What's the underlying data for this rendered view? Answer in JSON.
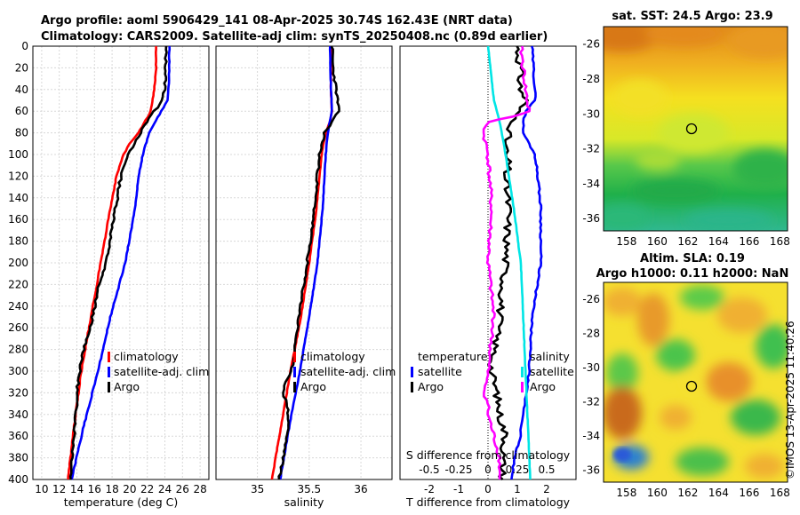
{
  "titles": {
    "line1": "Argo profile: aoml 5906429_141 08-Apr-2025 30.74S 162.43E (NRT data)",
    "line2": "Climatology: CARS2009. Satellite-adj clim: synTS_20250408.nc (0.89d earlier)"
  },
  "timestamp": "©IMOS 13-Apr-2025 11:40:26",
  "colors": {
    "climatology": "#ff0000",
    "satellite": "#0000ff",
    "argo": "#000000",
    "magenta": "#ff00ff",
    "cyan": "#00e5e5"
  },
  "chart_data": [
    {
      "type": "line",
      "name": "temperature",
      "xlabel": "temperature (deg C)",
      "xlim": [
        9,
        29
      ],
      "xticks": [
        "10",
        "12",
        "14",
        "16",
        "18",
        "20",
        "22",
        "24",
        "26",
        "28"
      ],
      "ylim": [
        0,
        400
      ],
      "yticks": [
        "0",
        "20",
        "40",
        "60",
        "80",
        "100",
        "120",
        "140",
        "160",
        "180",
        "200",
        "220",
        "240",
        "260",
        "280",
        "300",
        "320",
        "340",
        "360",
        "380",
        "400"
      ],
      "legend": [
        "climatology",
        "satellite-adj. clim",
        "Argo"
      ],
      "series": [
        {
          "name": "climatology",
          "depth": [
            0,
            20,
            40,
            60,
            80,
            90,
            100,
            120,
            150,
            200,
            250,
            300,
            350,
            400
          ],
          "values": [
            23.0,
            23.0,
            22.8,
            22.4,
            21.0,
            20.0,
            19.3,
            18.5,
            17.8,
            16.7,
            15.6,
            14.5,
            13.7,
            13.0
          ]
        },
        {
          "name": "satellite-adj. clim",
          "depth": [
            0,
            20,
            40,
            50,
            60,
            80,
            100,
            120,
            150,
            200,
            250,
            300,
            350,
            400
          ],
          "values": [
            24.5,
            24.5,
            24.4,
            24.3,
            23.6,
            22.2,
            21.5,
            21.0,
            20.6,
            19.5,
            17.8,
            16.4,
            14.8,
            13.4
          ]
        },
        {
          "name": "Argo",
          "depth": [
            0,
            20,
            40,
            50,
            60,
            70,
            80,
            90,
            100,
            120,
            150,
            200,
            220,
            250,
            280,
            300,
            320,
            340,
            360,
            380,
            400
          ],
          "values": [
            24.1,
            24.1,
            24.0,
            23.7,
            22.8,
            22.0,
            21.2,
            20.5,
            19.8,
            19.0,
            18.4,
            17.3,
            16.5,
            15.8,
            14.8,
            14.3,
            14.0,
            13.9,
            13.7,
            13.5,
            13.3
          ]
        }
      ]
    },
    {
      "type": "line",
      "name": "salinity",
      "xlabel": "salinity",
      "xlim": [
        34.6,
        36.3
      ],
      "xticks": [
        "35",
        "35.5",
        "36"
      ],
      "ylim": [
        0,
        400
      ],
      "legend": [
        "climatology",
        "satellite-adj. clim",
        "Argo"
      ],
      "series": [
        {
          "name": "climatology",
          "depth": [
            0,
            20,
            40,
            60,
            70,
            80,
            100,
            150,
            200,
            250,
            300,
            350,
            400
          ],
          "values": [
            35.71,
            35.71,
            35.71,
            35.72,
            35.7,
            35.66,
            35.62,
            35.57,
            35.5,
            35.42,
            35.32,
            35.23,
            35.14
          ]
        },
        {
          "name": "satellite-adj. clim",
          "depth": [
            0,
            40,
            60,
            70,
            80,
            100,
            150,
            200,
            250,
            300,
            350,
            400
          ],
          "values": [
            35.7,
            35.71,
            35.72,
            35.7,
            35.68,
            35.66,
            35.63,
            35.58,
            35.5,
            35.41,
            35.31,
            35.22
          ]
        },
        {
          "name": "Argo",
          "depth": [
            0,
            20,
            40,
            55,
            60,
            70,
            80,
            100,
            130,
            160,
            200,
            250,
            300,
            310,
            320,
            330,
            350,
            380,
            400
          ],
          "values": [
            35.72,
            35.73,
            35.76,
            35.78,
            35.78,
            35.72,
            35.65,
            35.6,
            35.57,
            35.54,
            35.48,
            35.4,
            35.33,
            35.28,
            35.24,
            35.29,
            35.3,
            35.25,
            35.21
          ]
        }
      ]
    },
    {
      "type": "line",
      "name": "difference",
      "xlabel": "T difference from climatology",
      "xlabel_top": "S difference from climatology",
      "xlim": [
        -3,
        3
      ],
      "xticks": [
        "-2",
        "-1",
        "0",
        "1",
        "2"
      ],
      "xticks_top": [
        "-0.5",
        "-0.25",
        "0",
        "0.25",
        "0.5"
      ],
      "ylim": [
        0,
        400
      ],
      "legend_left": {
        "title": "temperature",
        "items": [
          "satellite",
          "Argo"
        ]
      },
      "legend_right": {
        "title": "salinity",
        "items": [
          "satellite",
          "Argo"
        ]
      },
      "series": [
        {
          "name": "T satellite",
          "depth": [
            0,
            40,
            50,
            60,
            70,
            80,
            90,
            100,
            120,
            150,
            200,
            250,
            300,
            320,
            340,
            360,
            380,
            400
          ],
          "values": [
            1.5,
            1.6,
            1.6,
            1.3,
            1.2,
            1.2,
            1.4,
            1.6,
            1.7,
            1.8,
            1.8,
            1.5,
            1.4,
            1.3,
            1.2,
            1.1,
            0.9,
            0.8
          ]
        },
        {
          "name": "T Argo",
          "depth": [
            0,
            20,
            40,
            50,
            60,
            70,
            80,
            90,
            100,
            110,
            120,
            150,
            200,
            250,
            300,
            320,
            340,
            360,
            380,
            400
          ],
          "values": [
            1.0,
            1.1,
            1.1,
            1.3,
            1.0,
            0.9,
            0.7,
            0.6,
            0.6,
            0.7,
            0.6,
            0.7,
            0.6,
            0.4,
            0.1,
            0.3,
            0.4,
            0.6,
            0.5,
            0.5
          ]
        },
        {
          "name": "S satellite",
          "depth": [
            0,
            50,
            70,
            100,
            150,
            200,
            300,
            400
          ],
          "values": [
            0.0,
            0.05,
            0.1,
            0.15,
            0.22,
            0.28,
            0.32,
            0.36
          ]
        },
        {
          "name": "S Argo",
          "depth": [
            0,
            20,
            40,
            55,
            60,
            65,
            70,
            80,
            100,
            150,
            200,
            250,
            300,
            310,
            320,
            330,
            340,
            360,
            380,
            400
          ],
          "values": [
            0.28,
            0.3,
            0.32,
            0.34,
            0.36,
            0.2,
            0.0,
            -0.04,
            0.0,
            0.03,
            0.0,
            0.05,
            0.0,
            -0.02,
            -0.03,
            0.0,
            0.0,
            0.05,
            0.1,
            0.1
          ]
        }
      ]
    }
  ],
  "sst_map": {
    "title": "sat. SST: 24.5 Argo: 23.9",
    "xticks": [
      "158",
      "160",
      "162",
      "164",
      "166",
      "168"
    ],
    "yticks": [
      "-26",
      "-28",
      "-30",
      "-32",
      "-34",
      "-36"
    ]
  },
  "sla_map": {
    "title1": "Altim. SLA: 0.19",
    "title2": "Argo h1000: 0.11 h2000: NaN",
    "xticks": [
      "158",
      "160",
      "162",
      "164",
      "166",
      "168"
    ],
    "yticks": [
      "-26",
      "-28",
      "-30",
      "-32",
      "-34",
      "-36"
    ]
  }
}
